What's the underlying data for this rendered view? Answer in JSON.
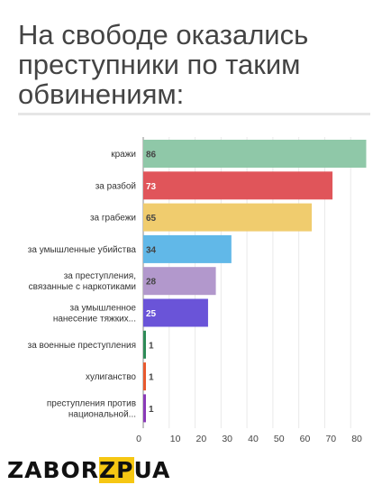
{
  "title": "На свободе оказались преступники по таким обвинениям:",
  "brand": {
    "prefix": "ZABOR",
    "highlight": "ZP",
    "suffix": "UA",
    "highlight_color": "#f6c713"
  },
  "chart_data": {
    "type": "bar",
    "orientation": "horizontal",
    "categories": [
      "кражи",
      "за разбой",
      "за грабежи",
      "за умышленные убийства",
      "за преступления,\nсвязанные с наркотиками",
      "за умышленное\nнанесение тяжких...",
      "за военные преступления",
      "хулиганство",
      "преступления против\nнациональной..."
    ],
    "values": [
      86,
      73,
      65,
      34,
      28,
      25,
      1,
      1,
      1
    ],
    "colors": [
      "#8fc8a8",
      "#e0555a",
      "#f0cc6e",
      "#61b8e8",
      "#b298cc",
      "#6a54d8",
      "#2e8b57",
      "#e8592e",
      "#8a3ab8"
    ],
    "label_colors": [
      "#444444",
      "#ffffff",
      "#444444",
      "#444444",
      "#444444",
      "#ffffff",
      "#444444",
      "#444444",
      "#444444"
    ],
    "xticks": [
      0,
      10,
      20,
      30,
      40,
      50,
      60,
      70,
      80
    ],
    "xlim": [
      0,
      90
    ],
    "grid": true
  }
}
